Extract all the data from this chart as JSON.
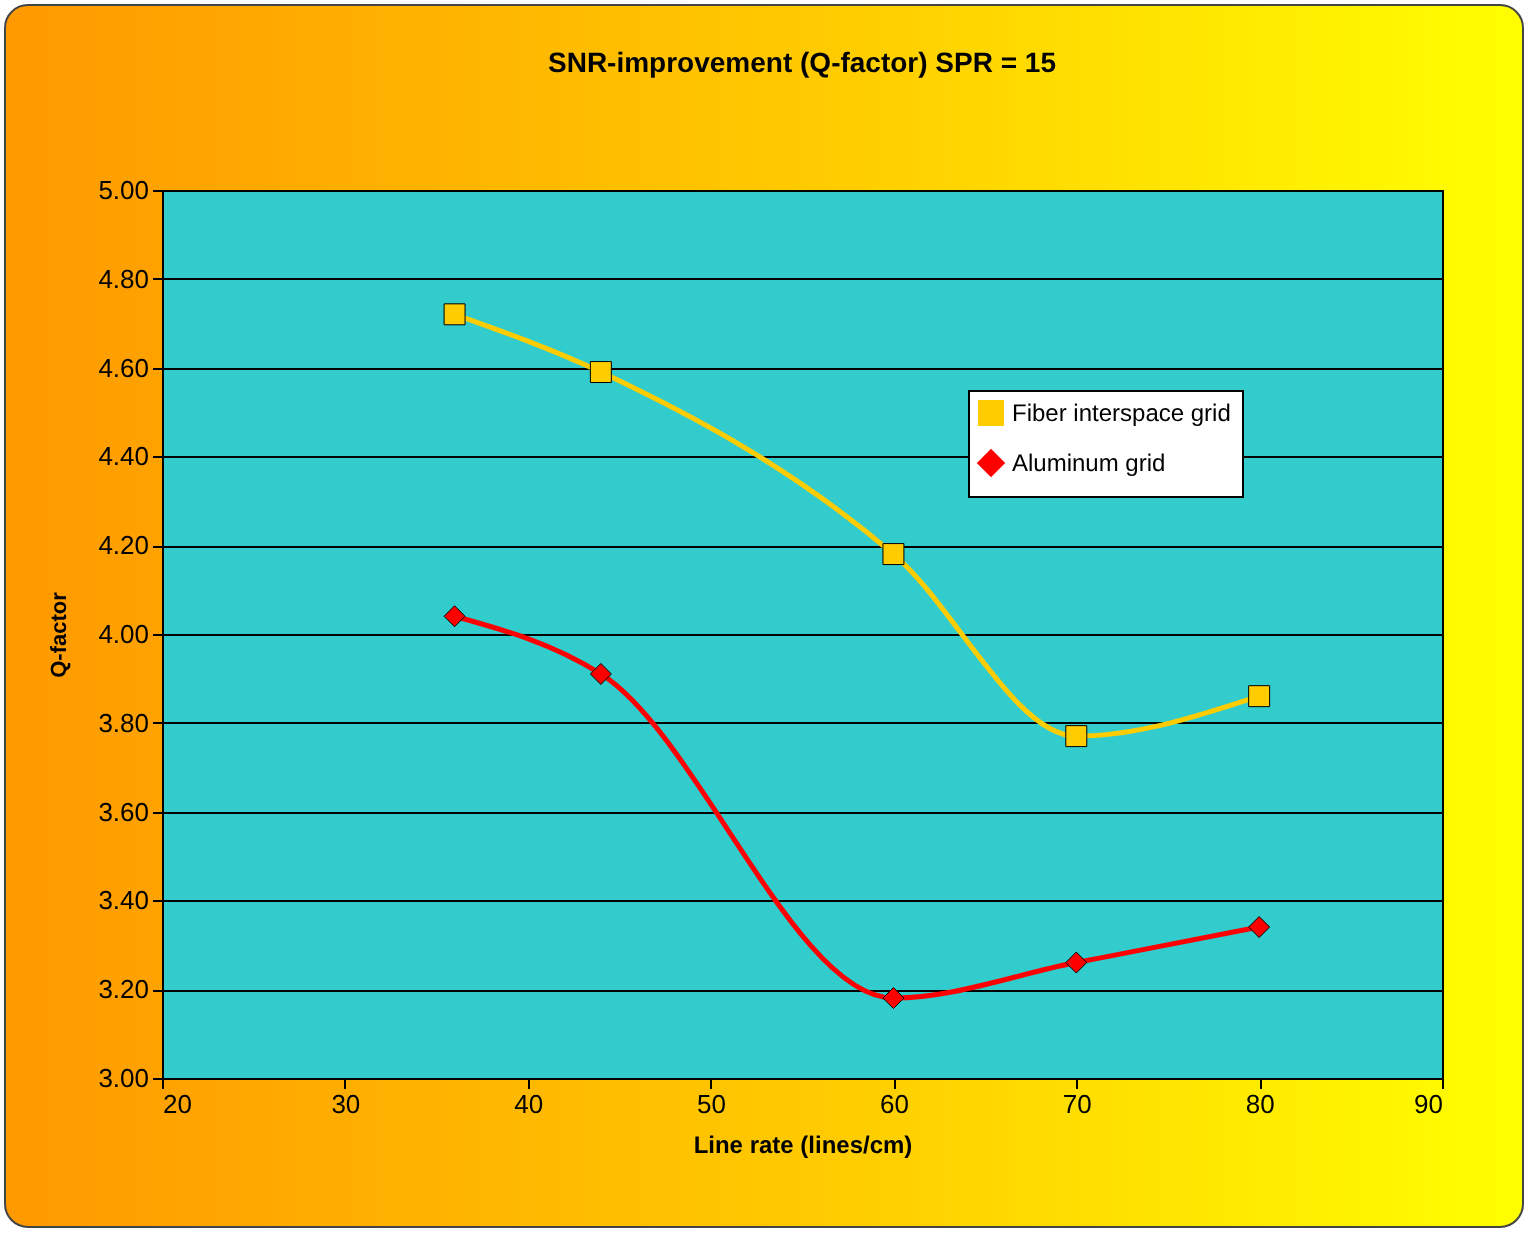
{
  "chart_data": {
    "type": "line",
    "title": "SNR-improvement (Q-factor) SPR = 15",
    "xlabel": "Line rate (lines/cm)",
    "ylabel": "Q-factor",
    "x": [
      36,
      44,
      60,
      70,
      80
    ],
    "series": [
      {
        "name": "Fiber interspace grid",
        "color": "#ffcc00",
        "marker": "square",
        "values": [
          4.72,
          4.59,
          4.18,
          3.77,
          3.86
        ]
      },
      {
        "name": "Aluminum grid",
        "color": "#ff0000",
        "marker": "diamond",
        "values": [
          4.04,
          3.91,
          3.18,
          3.26,
          3.34
        ]
      }
    ],
    "xlim": [
      20,
      90
    ],
    "xticks": [
      20,
      30,
      40,
      50,
      60,
      70,
      80,
      90
    ],
    "ylim": [
      3,
      5
    ],
    "yticks": [
      {
        "value": 3,
        "label": "3.00"
      },
      {
        "value": 3.2,
        "label": "3.20"
      },
      {
        "value": 3.4,
        "label": "3.40"
      },
      {
        "value": 3.6,
        "label": "3.60"
      },
      {
        "value": 3.8,
        "label": "3.80"
      },
      {
        "value": 4,
        "label": "4.00"
      },
      {
        "value": 4.2,
        "label": "4.20"
      },
      {
        "value": 4.4,
        "label": "4.40"
      },
      {
        "value": 4.6,
        "label": "4.60"
      },
      {
        "value": 4.8,
        "label": "4.80"
      },
      {
        "value": 5,
        "label": "5.00"
      }
    ],
    "grid": "y",
    "legend": "top right",
    "line_style": "solid"
  }
}
